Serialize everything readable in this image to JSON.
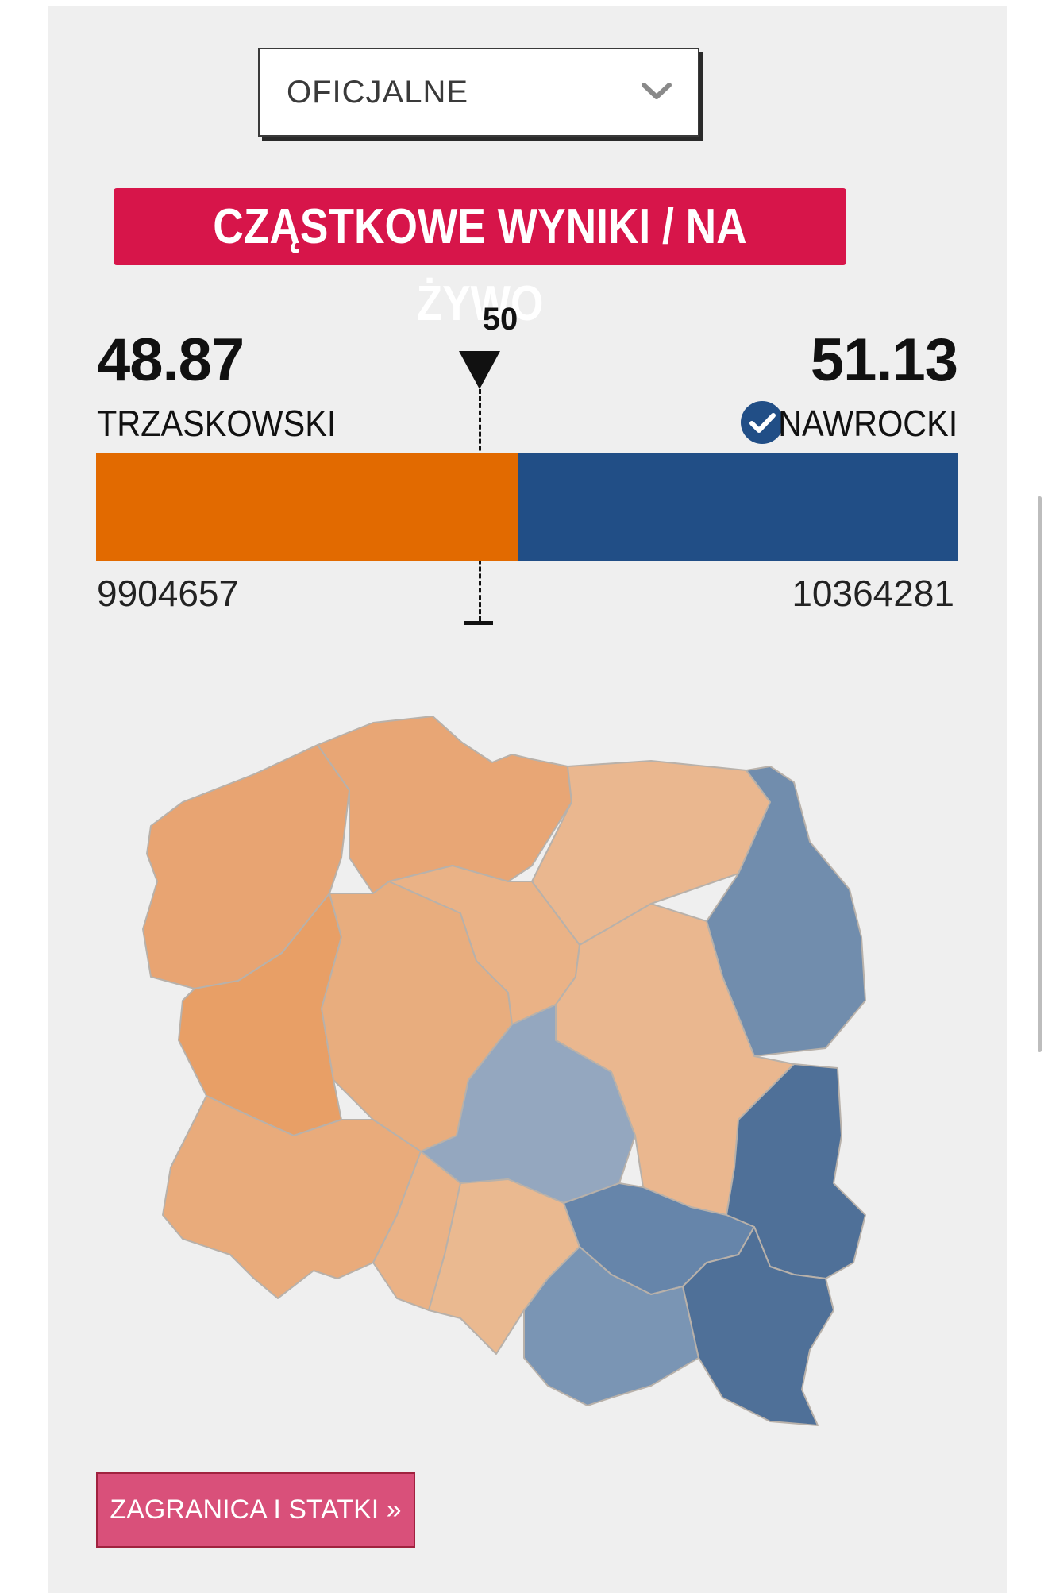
{
  "dropdown": {
    "selected": "OFICJALNE",
    "icon": "chevron-down-icon"
  },
  "banner": {
    "text": "CZĄSTKOWE WYNIKI / NA ŻYWO",
    "color": "#d7154a"
  },
  "threshold": {
    "label": "50"
  },
  "candidates": {
    "left": {
      "name": "TRZASKOWSKI",
      "percent": "48.87",
      "votes": "9904657",
      "color": "#e26a00"
    },
    "right": {
      "name": "NAWROCKI",
      "percent": "51.13",
      "votes": "10364281",
      "color": "#214e86",
      "winner_icon": "check-circle-icon"
    }
  },
  "bar": {
    "left_share_percent": 48.87
  },
  "map": {
    "regions": [
      {
        "id": "zachodniopomorskie",
        "leader": "left",
        "color": "#e8a472"
      },
      {
        "id": "pomorskie",
        "leader": "left",
        "color": "#e8a675"
      },
      {
        "id": "warminsko-mazurskie",
        "leader": "left",
        "color": "#eab78f"
      },
      {
        "id": "podlaskie",
        "leader": "right",
        "color": "#718dad"
      },
      {
        "id": "lubuskie",
        "leader": "left",
        "color": "#e89f66"
      },
      {
        "id": "wielkopolskie",
        "leader": "left",
        "color": "#e8ad7e"
      },
      {
        "id": "kujawsko-pomorskie",
        "leader": "left",
        "color": "#eab286"
      },
      {
        "id": "mazowieckie",
        "leader": "left",
        "color": "#eab78f"
      },
      {
        "id": "lodzkie",
        "leader": "right",
        "color": "#94a7bf"
      },
      {
        "id": "lubelskie",
        "leader": "right",
        "color": "#4f7098"
      },
      {
        "id": "dolnoslaskie",
        "leader": "left",
        "color": "#e9ab7b"
      },
      {
        "id": "opolskie",
        "leader": "left",
        "color": "#eab286"
      },
      {
        "id": "slaskie",
        "leader": "left",
        "color": "#eab990"
      },
      {
        "id": "swietokrzyskie",
        "leader": "right",
        "color": "#6685aa"
      },
      {
        "id": "malopolskie",
        "leader": "right",
        "color": "#7a95b4"
      },
      {
        "id": "podkarpackie",
        "leader": "right",
        "color": "#4f7098"
      }
    ]
  },
  "abroad_button": {
    "label": "ZAGRANICA I STATKI »",
    "color": "#d9507a"
  }
}
